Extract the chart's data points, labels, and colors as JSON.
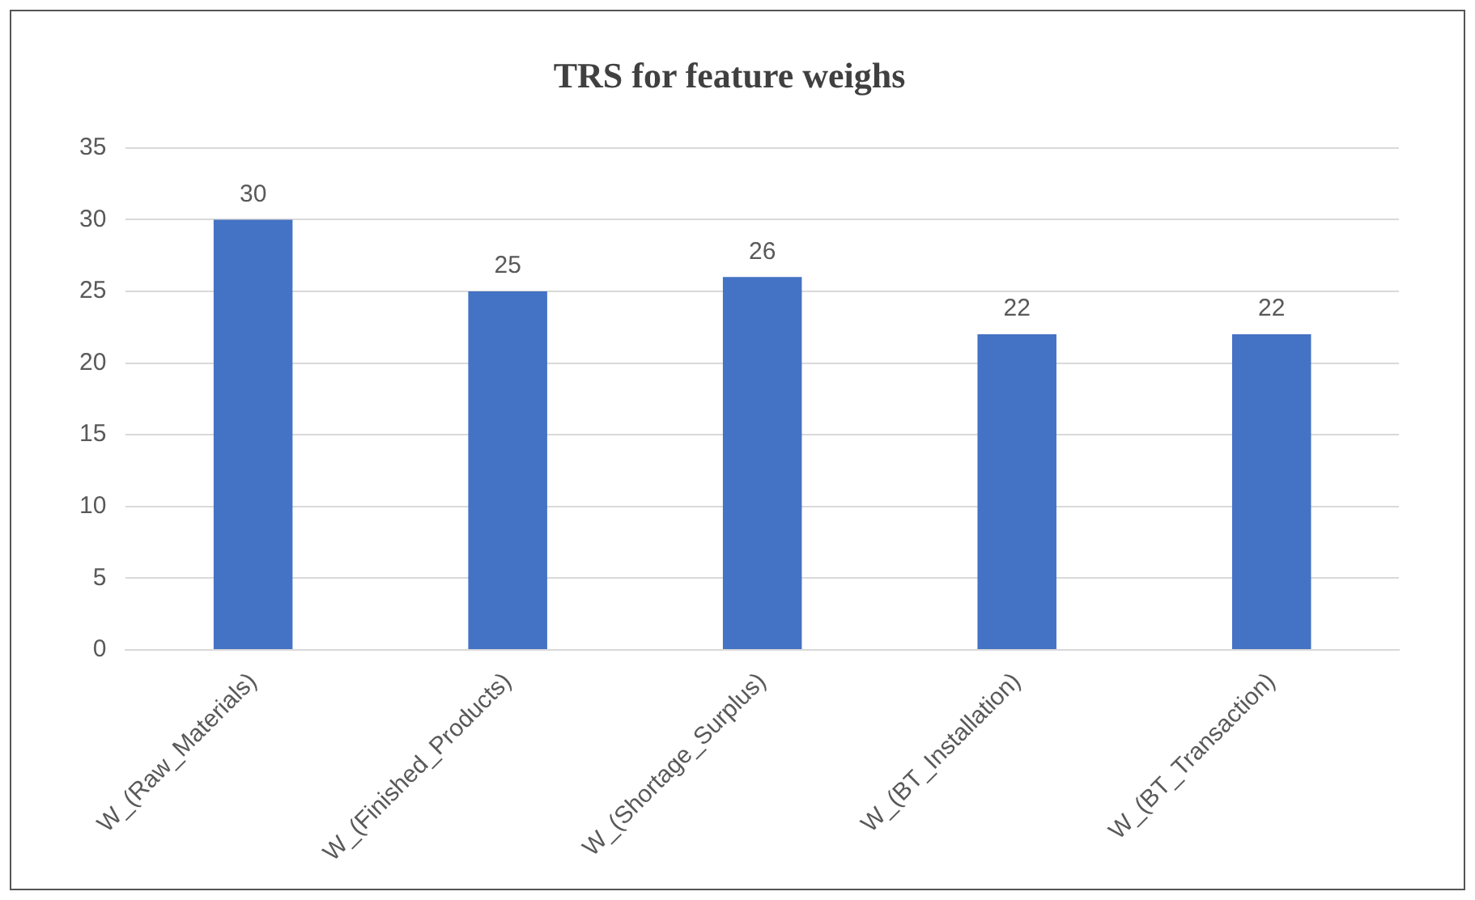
{
  "chart_data": {
    "type": "bar",
    "title": "TRS for feature weighs",
    "categories": [
      "W_(Raw_Materials)",
      "W_(Finished_Products)",
      "W_(Shortage_Surplus)",
      "W_(BT_Installation)",
      "W_(BT_Transaction)"
    ],
    "values": [
      30,
      25,
      26,
      22,
      22
    ],
    "color": "#4472c4",
    "ylim": [
      0,
      35
    ],
    "yticks": [
      0,
      5,
      10,
      15,
      20,
      25,
      30,
      35
    ],
    "grid": "y",
    "data_labels": true,
    "legend": false
  }
}
